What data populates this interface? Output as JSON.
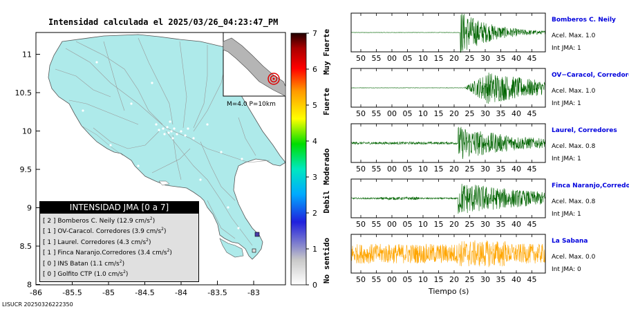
{
  "header": {
    "title": "Intensidad calculada el 2025/03/26_04:23:47_PM"
  },
  "map": {
    "x_ticks": [
      "-86",
      "-85.5",
      "-85",
      "-84.5",
      "-84",
      "-83.5",
      "-83"
    ],
    "y_ticks": [
      "11",
      "10.5",
      "10",
      "9.5",
      "9",
      "8.5",
      "8"
    ],
    "land_color": "#aeeaea",
    "inset_label": "M=4.0 P=10km"
  },
  "colorbar": {
    "ticks": [
      "7",
      "6",
      "5",
      "4",
      "3",
      "2",
      "1",
      "0"
    ],
    "categories": [
      "Muy Fuerte",
      "Fuerte",
      "Moderado",
      "Debil",
      "No sentido"
    ]
  },
  "legend": {
    "title": "INTENSIDAD JMA [0 a 7]",
    "rows": [
      {
        "jma": "[ 2 ]",
        "text": "Bomberos C. Neily (12.9 cm/s",
        "exp": "2",
        "close": ")"
      },
      {
        "jma": "[ 1 ]",
        "text": "OV-Caracol. Corredores (3.9 cm/s",
        "exp": "2",
        "close": ")"
      },
      {
        "jma": "[ 1 ]",
        "text": "Laurel. Corredores (4.3 cm/s",
        "exp": "2",
        "close": ")"
      },
      {
        "jma": "[ 1 ]",
        "text": "Finca Naranjo.Corredores (3.4 cm/s",
        "exp": "2",
        "close": ")"
      },
      {
        "jma": "[ 0 ]",
        "text": "INS Batan (1.1 cm/s",
        "exp": "2",
        "close": ")"
      },
      {
        "jma": "[ 0 ]",
        "text": "Golfito CTP (1.0 cm/s",
        "exp": "2",
        "close": ")"
      }
    ]
  },
  "footer": {
    "id": "LISUCR 20250326222350"
  },
  "waveforms": {
    "time_ticks": [
      "50",
      "55",
      "00",
      "05",
      "10",
      "15",
      "20",
      "25",
      "30",
      "35",
      "40",
      "45"
    ],
    "xlabel": "Tiempo (s)",
    "stations": [
      {
        "name": "Bomberos C. Neily",
        "acc": "Acel. Max. 1.0",
        "jma": "Int JMA: 1",
        "color": "#006400"
      },
      {
        "name": "OV−Caracol, Corredores",
        "acc": "Acel. Max. 1.0",
        "jma": "Int JMA: 1",
        "color": "#006400"
      },
      {
        "name": "Laurel, Corredores",
        "acc": "Acel. Max. 0.8",
        "jma": "Int JMA: 1",
        "color": "#006400"
      },
      {
        "name": "Finca Naranjo,Corredores",
        "acc": "Acel. Max. 0.8",
        "jma": "Int JMA: 1",
        "color": "#006400"
      },
      {
        "name": "La Sabana",
        "acc": "Acel. Max. 0.0",
        "jma": "Int JMA: 0",
        "color": "#ffa500"
      }
    ]
  },
  "chart_data": [
    {
      "type": "map",
      "title": "Intensidad calculada el 2025/03/26_04:23:47_PM",
      "x_range": [
        -86,
        -82.6
      ],
      "y_range": [
        8,
        11.3
      ],
      "stations": [
        {
          "name": "Bomberos C. Neily",
          "lon": -82.96,
          "lat": 8.65,
          "jma": 2
        },
        {
          "name": "Golfito CTP",
          "lon": -83.15,
          "lat": 8.64,
          "jma": 0
        }
      ],
      "colorbar": {
        "range": [
          0,
          7
        ],
        "ticks": [
          0,
          1,
          2,
          3,
          4,
          5,
          6,
          7
        ]
      }
    },
    {
      "type": "line",
      "xlabel": "Tiempo (s)",
      "x_tick_labels": [
        "50",
        "55",
        "00",
        "05",
        "10",
        "15",
        "20",
        "25",
        "30",
        "35",
        "40",
        "45"
      ],
      "series": [
        {
          "name": "Bomberos C. Neily",
          "acel_max": 1.0,
          "jma": 1
        },
        {
          "name": "OV−Caracol, Corredores",
          "acel_max": 1.0,
          "jma": 1
        },
        {
          "name": "Laurel, Corredores",
          "acel_max": 0.8,
          "jma": 1
        },
        {
          "name": "Finca Naranjo,Corredores",
          "acel_max": 0.8,
          "jma": 1
        },
        {
          "name": "La Sabana",
          "acel_max": 0.0,
          "jma": 0
        }
      ]
    }
  ]
}
